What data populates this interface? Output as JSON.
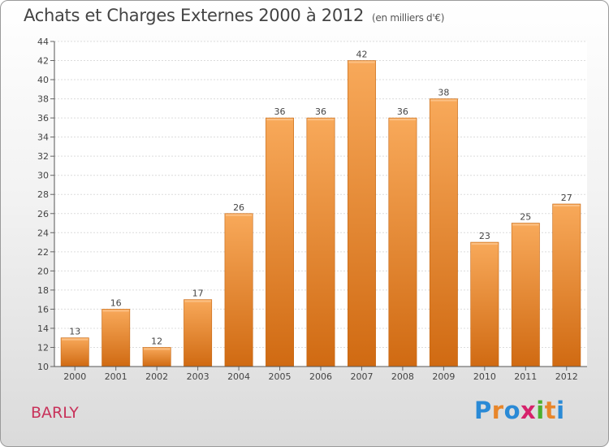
{
  "chart_data": {
    "type": "bar",
    "title": "Achats et Charges Externes 2000 à 2012",
    "subtitle": "(en milliers d'€)",
    "categories": [
      "2000",
      "2001",
      "2002",
      "2003",
      "2004",
      "2005",
      "2006",
      "2007",
      "2008",
      "2009",
      "2010",
      "2011",
      "2012"
    ],
    "values": [
      13,
      16,
      12,
      17,
      26,
      36,
      36,
      42,
      36,
      38,
      23,
      25,
      27
    ],
    "ylim": [
      10,
      44
    ],
    "ytick_step": 2,
    "grid": true,
    "bar_color_top": "#f8a95a",
    "bar_color_bottom": "#d06a12"
  },
  "place_label": "BARLY",
  "brand": {
    "text": "Proxiti",
    "letters": [
      "P",
      "r",
      "o",
      "x",
      "i",
      "t",
      "i"
    ],
    "colors": [
      "#2a8ad6",
      "#e8862a",
      "#2a8ad6",
      "#d6226b",
      "#4caf2e",
      "#e8862a",
      "#2a8ad6"
    ]
  }
}
